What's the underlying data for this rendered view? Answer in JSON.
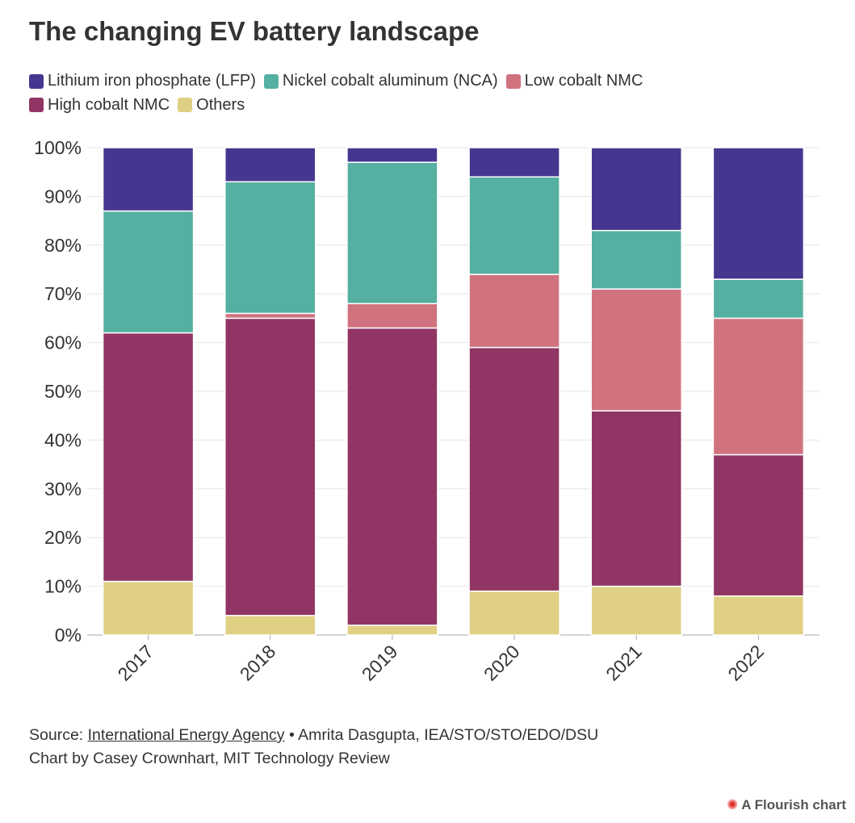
{
  "title": "The changing EV battery landscape",
  "source": {
    "prefix": "Source: ",
    "link": "International Energy Agency",
    "rest": " • Amrita Dasgupta, IEA/STO/STO/EDO/DSU",
    "credit": "Chart by Casey Crownhart, MIT Technology Review"
  },
  "flourish": {
    "icon": "flourish-star-icon",
    "label": "A Flourish chart"
  },
  "chart_data": {
    "type": "stacked-bar",
    "title": "The changing EV battery landscape",
    "categories": [
      "2017",
      "2018",
      "2019",
      "2020",
      "2021",
      "2022"
    ],
    "series": [
      {
        "name": "Others",
        "color": "#e0d084",
        "values": [
          11,
          4,
          2,
          9,
          10,
          8
        ]
      },
      {
        "name": "High cobalt NMC",
        "color": "#913564",
        "values": [
          51,
          61,
          61,
          50,
          36,
          29
        ]
      },
      {
        "name": "Low cobalt NMC",
        "color": "#d0737f",
        "values": [
          0,
          1,
          5,
          15,
          25,
          28
        ]
      },
      {
        "name": "Nickel cobalt aluminum (NCA)",
        "color": "#55b0a1",
        "values": [
          25,
          27,
          29,
          20,
          12,
          8
        ]
      },
      {
        "name": "Lithium iron phosphate (LFP)",
        "color": "#47368f",
        "values": [
          13,
          7,
          3,
          6,
          17,
          27
        ]
      }
    ],
    "legend_order": [
      "Lithium iron phosphate (LFP)",
      "Nickel cobalt aluminum (NCA)",
      "Low cobalt NMC",
      "High cobalt NMC",
      "Others"
    ],
    "legend_position": "top-left",
    "ylim": [
      0,
      100
    ],
    "yticks": [
      "0%",
      "10%",
      "20%",
      "30%",
      "40%",
      "50%",
      "60%",
      "70%",
      "80%",
      "90%",
      "100%"
    ],
    "grid": true,
    "xlabel": "",
    "ylabel": ""
  }
}
